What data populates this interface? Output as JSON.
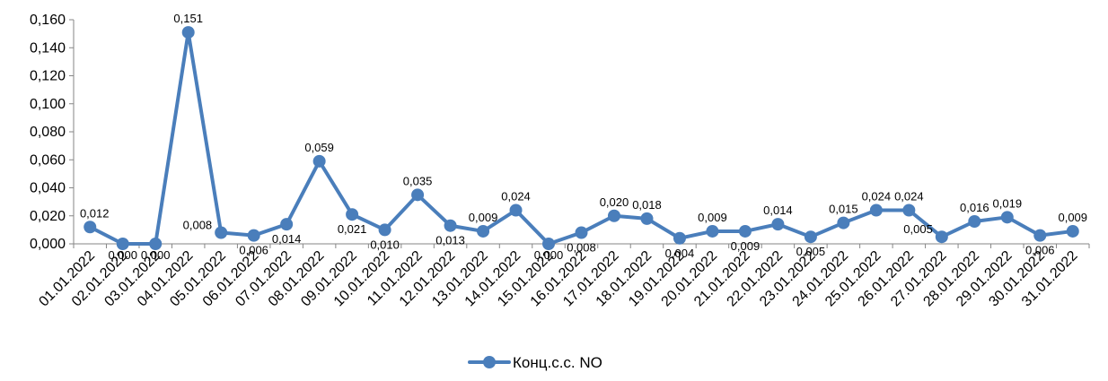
{
  "chart_data": {
    "type": "line",
    "categories": [
      "01.01.2022",
      "02.01.2022",
      "03.01.2022",
      "04.01.2022",
      "05.01.2022",
      "06.01.2022",
      "07.01.2022",
      "08.01.2022",
      "09.01.2022",
      "10.01.2022",
      "11.01.2022",
      "12.01.2022",
      "13.01.2022",
      "14.01.2022",
      "15.01.2022",
      "16.01.2022",
      "17.01.2022",
      "18.01.2022",
      "19.01.2022",
      "20.01.2022",
      "21.01.2022",
      "22.01.2022",
      "23.01.2022",
      "24.01.2022",
      "25.01.2022",
      "26.01.2022",
      "27.01.2022",
      "28.01.2022",
      "29.01.2022",
      "30.01.2022",
      "31.01.2022"
    ],
    "series": [
      {
        "name": "Конц.с.с. NO",
        "color": "#4a7ebb",
        "values": [
          0.012,
          0.0,
          0.0,
          0.151,
          0.008,
          0.006,
          0.014,
          0.059,
          0.021,
          0.01,
          0.035,
          0.013,
          0.009,
          0.024,
          0.0,
          0.008,
          0.02,
          0.018,
          0.004,
          0.009,
          0.009,
          0.014,
          0.005,
          0.015,
          0.024,
          0.024,
          0.005,
          0.016,
          0.019,
          0.006,
          0.009
        ],
        "data_labels": [
          "0,012",
          "0,000",
          "0,000",
          "0,151",
          "0,008",
          "0,006",
          "0,014",
          "0,059",
          "0,021",
          "0,010",
          "0,035",
          "0,013",
          "0,009",
          "0,024",
          "0,000",
          "0,008",
          "0,020",
          "0,018",
          "0,004",
          "0,009",
          "0,009",
          "0,014",
          "0,005",
          "0,015",
          "0,024",
          "0,024",
          "0,005",
          "0,016",
          "0,019",
          "0,006",
          "0,009"
        ],
        "label_positions": [
          "above",
          "below",
          "below",
          "above",
          "left",
          "below",
          "below",
          "above",
          "below",
          "below",
          "above",
          "below",
          "above",
          "above",
          "below",
          "below",
          "above",
          "above",
          "below",
          "above",
          "below",
          "above",
          "below",
          "above",
          "above",
          "above",
          "left",
          "above",
          "above",
          "below",
          "above"
        ]
      }
    ],
    "yticks": [
      "0,000",
      "0,020",
      "0,040",
      "0,060",
      "0,080",
      "0,100",
      "0,120",
      "0,140",
      "0,160"
    ],
    "ylim": [
      0,
      0.16
    ],
    "grid": false,
    "legend": "bottom-center"
  }
}
